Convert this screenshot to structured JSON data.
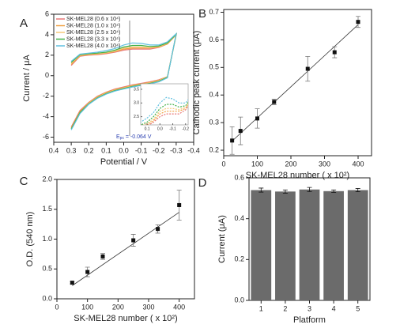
{
  "chart_data": [
    {
      "type": "cv",
      "panel": "A",
      "xlabel": "Potential / V",
      "ylabel": "Current / μA",
      "xlim": [
        0.4,
        -0.4
      ],
      "xticks": [
        0.4,
        0.3,
        0.2,
        0.1,
        {
          "value": 0,
          "label": "0.0"
        },
        -0.1,
        -0.2,
        -0.3,
        -0.4
      ],
      "ylim": [
        -6.5,
        6
      ],
      "yticks": [
        -6,
        -4,
        -2,
        0,
        2,
        4,
        6
      ],
      "annotation": {
        "symbol": "E",
        "subscript": "pc",
        "text": " = -0.064 V"
      },
      "legend": "upper left",
      "x": [
        0.3,
        0.25,
        0.2,
        0.15,
        0.1,
        0.05,
        0,
        -0.05,
        -0.1,
        -0.15,
        -0.2,
        -0.25,
        -0.3,
        -0.25,
        -0.2,
        -0.15,
        -0.1,
        -0.05,
        0,
        0.05,
        0.1,
        0.15,
        0.2,
        0.25,
        0.3
      ],
      "series": [
        {
          "name": "SK-MEL28 (0.6 x 10⁴)",
          "color": "#e87878",
          "values": [
            1.0,
            1.9,
            2.0,
            2.05,
            2.15,
            2.3,
            2.5,
            2.6,
            2.6,
            2.6,
            2.75,
            3.1,
            4.0,
            -0.1,
            -0.4,
            -0.6,
            -0.75,
            -0.9,
            -1.1,
            -1.3,
            -1.6,
            -2.0,
            -2.6,
            -3.4,
            -5.0
          ]
        },
        {
          "name": "SK-MEL28 (1.0 x 10⁴)",
          "color": "#f0a040",
          "values": [
            1.1,
            1.95,
            2.05,
            2.1,
            2.2,
            2.35,
            2.6,
            2.7,
            2.7,
            2.7,
            2.8,
            3.1,
            4.0,
            -0.1,
            -0.45,
            -0.65,
            -0.8,
            -0.95,
            -1.15,
            -1.35,
            -1.65,
            -2.05,
            -2.65,
            -3.5,
            -5.1
          ]
        },
        {
          "name": "SK-MEL28 (2.5 x 10⁴)",
          "color": "#f5c878",
          "values": [
            1.2,
            2.0,
            2.1,
            2.15,
            2.25,
            2.4,
            2.7,
            2.8,
            2.8,
            2.75,
            2.85,
            3.15,
            4.0,
            -0.1,
            -0.5,
            -0.7,
            -0.85,
            -1.0,
            -1.2,
            -1.4,
            -1.7,
            -2.1,
            -2.7,
            -3.6,
            -5.2
          ]
        },
        {
          "name": "SK-MEL28 (3.3 x 10⁴)",
          "color": "#40b048",
          "values": [
            1.3,
            2.05,
            2.15,
            2.2,
            2.3,
            2.5,
            2.8,
            2.95,
            2.95,
            2.85,
            2.9,
            3.2,
            4.05,
            -0.15,
            -0.55,
            -0.75,
            -0.9,
            -1.05,
            -1.25,
            -1.45,
            -1.75,
            -2.15,
            -2.75,
            -3.6,
            -5.2
          ]
        },
        {
          "name": "SK-MEL28 (4.0 x 10⁴)",
          "color": "#60c0e0",
          "values": [
            1.4,
            2.1,
            2.2,
            2.3,
            2.45,
            2.65,
            3.0,
            3.2,
            3.15,
            3.0,
            3.0,
            3.3,
            4.1,
            -0.2,
            -0.6,
            -0.8,
            -0.95,
            -1.1,
            -1.3,
            -1.5,
            -1.8,
            -2.2,
            -2.8,
            -3.7,
            -5.3
          ]
        }
      ],
      "inset": {
        "xlim": [
          0.15,
          -0.22
        ],
        "xticks": [
          0.1,
          {
            "value": 0,
            "label": "0.0"
          },
          -0.1,
          -0.2
        ],
        "ylim": [
          2.2,
          3.7
        ],
        "yticks": [
          2.5,
          {
            "value": 3,
            "label": "3.0"
          },
          3.5
        ]
      }
    },
    {
      "type": "errorscatter",
      "panel": "B",
      "xlabel": "SK-MEL28 number ( x 10²)",
      "ylabel": "Cathodic peak current (μA)",
      "xlim": [
        0,
        440
      ],
      "xticks": [
        0,
        100,
        200,
        300,
        400
      ],
      "ylim": [
        0.18,
        0.71
      ],
      "yticks": [
        0.2,
        0.3,
        0.4,
        0.5,
        0.6,
        0.7
      ],
      "x": [
        25,
        50,
        100,
        150,
        250,
        330,
        400
      ],
      "values": [
        0.235,
        0.27,
        0.315,
        0.375,
        0.495,
        0.555,
        0.665
      ],
      "errors": [
        0.05,
        0.05,
        0.035,
        0.01,
        0.045,
        0.02,
        0.02
      ],
      "fit": {
        "x": [
          25,
          400
        ],
        "y": [
          0.233,
          0.655
        ]
      }
    },
    {
      "type": "errorscatter",
      "panel": "C",
      "xlabel": "SK-MEL28 number ( x 10²)",
      "ylabel": "O.D. (540 nm)",
      "xlim": [
        0,
        450
      ],
      "xticks": [
        0,
        100,
        200,
        300,
        400
      ],
      "ylim": [
        0,
        2
      ],
      "yticks": [
        {
          "value": 0,
          "label": "0.0"
        },
        0.5,
        {
          "value": 1,
          "label": "1.0"
        },
        1.5,
        {
          "value": 2,
          "label": "2.0"
        }
      ],
      "x": [
        50,
        100,
        150,
        250,
        330,
        400
      ],
      "values": [
        0.27,
        0.45,
        0.71,
        0.98,
        1.17,
        1.57
      ],
      "errors": [
        0.02,
        0.08,
        0.05,
        0.1,
        0.07,
        0.25
      ],
      "fit": {
        "x": [
          50,
          400
        ],
        "y": [
          0.22,
          1.45
        ]
      }
    },
    {
      "type": "bar",
      "panel": "D",
      "xlabel": "Platform",
      "ylabel": "Current (μA)",
      "color": "#6b6b6b",
      "categories": [
        "1",
        "2",
        "3",
        "4",
        "5"
      ],
      "values": [
        0.54,
        0.533,
        0.543,
        0.535,
        0.54
      ],
      "errors": [
        0.01,
        0.008,
        0.01,
        0.006,
        0.008
      ],
      "ylim": [
        0,
        0.6
      ],
      "yticks": [
        {
          "value": 0,
          "label": "0.0"
        },
        0.2,
        0.4,
        0.6
      ]
    }
  ]
}
